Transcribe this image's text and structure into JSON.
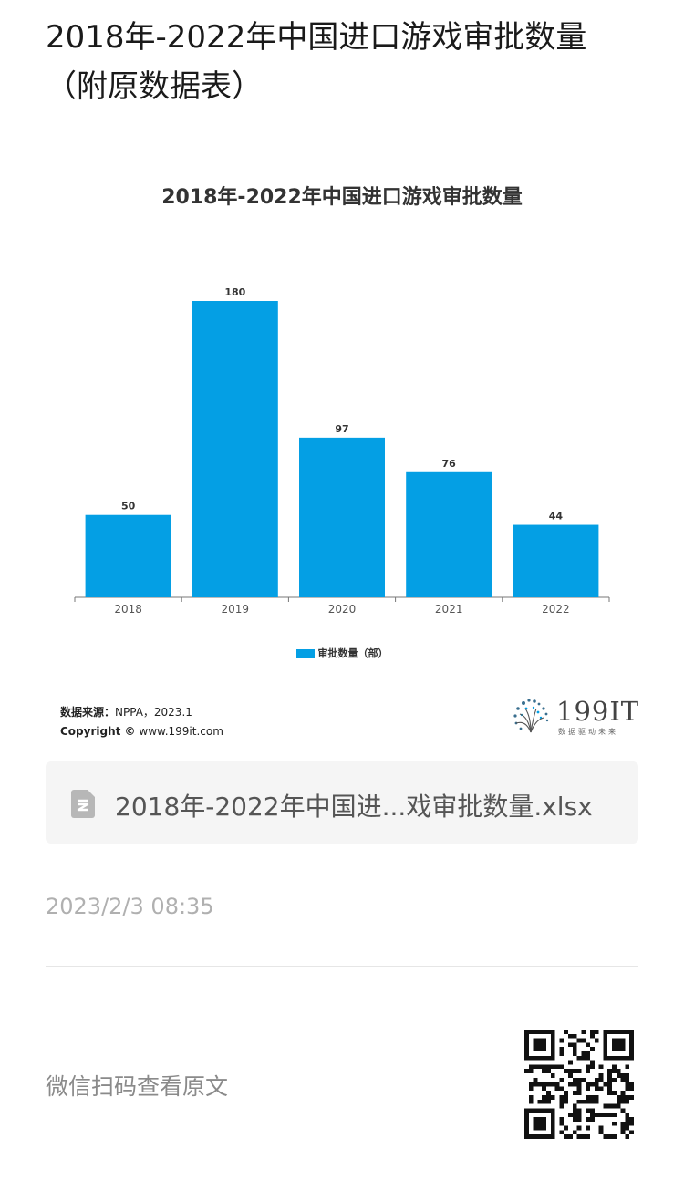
{
  "page": {
    "title": "2018年-2022年中国进口游戏审批数量（附原数据表）"
  },
  "chart_data": {
    "type": "bar",
    "title": "2018年-2022年中国进口游戏审批数量",
    "categories": [
      "2018",
      "2019",
      "2020",
      "2021",
      "2022"
    ],
    "series": [
      {
        "name": "审批数量（部）",
        "values": [
          50,
          180,
          97,
          76,
          44
        ],
        "color": "#049fe4"
      }
    ],
    "ylim": [
      0,
      180
    ],
    "grid": false,
    "legend": "bottom-center",
    "data_labels": true
  },
  "source": {
    "label": "数据来源：",
    "value": "NPPA，2023.1",
    "copyright_label": "Copyright ©",
    "copyright_value": "www.199it.com"
  },
  "logo": {
    "text": "199IT",
    "tagline": "数据驱动未来"
  },
  "file": {
    "name": "2018年-2022年中国进...戏审批数量.xlsx",
    "icon": "spreadsheet-file-icon"
  },
  "timestamp": "2023/2/3 08:35",
  "qr": {
    "label": "微信扫码查看原文",
    "icon": "qr-code-icon"
  }
}
